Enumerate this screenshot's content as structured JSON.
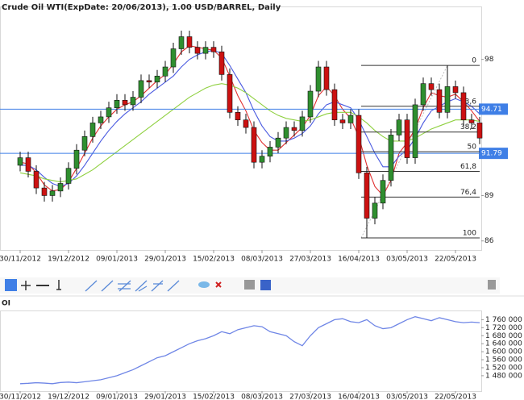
{
  "chart_data": {
    "type": "candlestick",
    "title": "Crude Oil WTI(ExpDate: 20/06/2013), 1.00 USD/BARREL, Daily",
    "xticks": [
      {
        "value": 0,
        "label": "30/11/2012"
      },
      {
        "value": 6,
        "label": "19/12/2012"
      },
      {
        "value": 12,
        "label": "09/01/2013"
      },
      {
        "value": 18,
        "label": "29/01/2013"
      },
      {
        "value": 24,
        "label": "15/02/2013"
      },
      {
        "value": 30,
        "label": "08/03/2013"
      },
      {
        "value": 36,
        "label": "27/03/2013"
      },
      {
        "value": 42,
        "label": "16/04/2013"
      },
      {
        "value": 48,
        "label": "03/05/2013"
      },
      {
        "value": 54,
        "label": "22/05/2013"
      }
    ],
    "ylim": [
      85.4,
      101.5
    ],
    "yticks": [
      86,
      89,
      98
    ],
    "open": [
      91.0,
      91.5,
      90.6,
      89.5,
      89.0,
      89.3,
      89.8,
      90.8,
      92.0,
      92.9,
      93.8,
      94.2,
      94.8,
      95.3,
      95.0,
      95.5,
      96.6,
      96.5,
      96.9,
      97.5,
      98.7,
      99.5,
      98.8,
      98.4,
      98.8,
      98.5,
      97.0,
      94.5,
      94.0,
      93.5,
      91.2,
      91.6,
      92.2,
      92.8,
      93.5,
      93.3,
      94.2,
      95.9,
      97.5,
      96.0,
      94.0,
      93.8,
      94.3,
      90.5,
      87.5,
      88.5,
      90.0,
      93.0,
      94.0,
      91.5,
      95.0,
      96.4,
      96.0,
      94.5,
      96.2,
      95.8,
      94.0,
      93.8
    ],
    "high": [
      91.9,
      91.9,
      91.0,
      89.9,
      89.7,
      90.2,
      91.2,
      92.4,
      93.3,
      94.2,
      94.6,
      95.2,
      95.7,
      95.7,
      95.9,
      97.0,
      97.0,
      97.3,
      97.9,
      99.1,
      99.9,
      99.9,
      99.2,
      99.2,
      99.2,
      98.9,
      97.4,
      94.9,
      94.4,
      93.9,
      92.0,
      92.6,
      93.2,
      93.9,
      93.9,
      94.6,
      96.3,
      97.9,
      97.9,
      96.4,
      94.4,
      94.7,
      94.7,
      90.9,
      88.9,
      90.4,
      93.4,
      94.4,
      94.4,
      95.4,
      96.8,
      96.8,
      96.4,
      97.6,
      96.6,
      96.2,
      94.4,
      94.2
    ],
    "low": [
      90.6,
      90.2,
      89.1,
      88.6,
      88.6,
      88.9,
      89.4,
      90.4,
      91.6,
      92.5,
      93.4,
      93.8,
      94.4,
      94.6,
      94.6,
      95.1,
      96.1,
      96.1,
      96.5,
      97.1,
      98.3,
      98.4,
      98.0,
      98.0,
      98.1,
      96.6,
      94.1,
      93.6,
      93.1,
      90.8,
      90.8,
      91.2,
      91.8,
      92.4,
      92.9,
      92.9,
      93.8,
      95.5,
      95.6,
      93.6,
      93.4,
      93.4,
      90.1,
      86.2,
      87.1,
      88.1,
      89.6,
      92.6,
      91.1,
      91.1,
      94.6,
      95.6,
      94.1,
      94.1,
      95.4,
      93.6,
      93.4,
      92.4
    ],
    "close": [
      91.5,
      90.6,
      89.5,
      89.0,
      89.3,
      89.8,
      90.8,
      92.0,
      92.9,
      93.8,
      94.2,
      94.8,
      95.3,
      95.0,
      95.5,
      96.6,
      96.5,
      96.9,
      97.5,
      98.7,
      99.5,
      98.8,
      98.4,
      98.8,
      98.5,
      97.0,
      94.5,
      94.0,
      93.5,
      91.2,
      91.6,
      92.2,
      92.8,
      93.5,
      93.3,
      94.2,
      95.9,
      97.5,
      96.0,
      94.0,
      93.8,
      94.3,
      90.5,
      87.5,
      88.5,
      90.0,
      93.0,
      94.0,
      91.5,
      95.0,
      96.4,
      96.0,
      94.5,
      96.2,
      95.8,
      94.0,
      93.8,
      92.8
    ],
    "up_color": "#2f8f2f",
    "down_color": "#cc1111",
    "series": [
      {
        "color": "#e03030",
        "values": [
          91.2,
          91.1,
          90.5,
          89.7,
          89.3,
          89.4,
          89.9,
          90.8,
          91.8,
          92.8,
          93.6,
          94.2,
          94.7,
          95.0,
          95.2,
          95.6,
          96.1,
          96.6,
          97.0,
          97.7,
          98.5,
          98.9,
          98.8,
          98.7,
          98.6,
          98.1,
          96.9,
          95.6,
          94.6,
          93.3,
          92.5,
          92.0,
          92.0,
          92.5,
          93.0,
          93.5,
          94.3,
          95.6,
          96.2,
          95.6,
          94.7,
          94.1,
          92.9,
          91.0,
          89.6,
          89.0,
          90.0,
          91.8,
          92.5,
          93.4,
          94.8,
          95.8,
          95.6,
          95.5,
          95.7,
          95.2,
          94.6,
          93.9
        ]
      },
      {
        "color": "#4a5ae0",
        "values": [
          91.0,
          91.0,
          90.7,
          90.2,
          89.8,
          89.6,
          89.8,
          90.3,
          91.0,
          91.8,
          92.6,
          93.3,
          93.9,
          94.4,
          94.8,
          95.2,
          95.7,
          96.1,
          96.5,
          96.9,
          97.5,
          98.0,
          98.3,
          98.5,
          98.6,
          98.4,
          97.6,
          96.7,
          95.8,
          94.6,
          93.6,
          92.9,
          92.6,
          92.6,
          92.8,
          93.1,
          93.6,
          94.4,
          95.0,
          95.2,
          95.0,
          94.8,
          94.0,
          92.9,
          91.8,
          90.9,
          90.9,
          91.6,
          92.0,
          92.8,
          93.8,
          94.6,
          94.9,
          95.2,
          95.4,
          95.2,
          94.9,
          94.4
        ]
      },
      {
        "color": "#8fd040",
        "values": [
          90.5,
          90.4,
          90.3,
          90.1,
          90.0,
          89.9,
          90.0,
          90.1,
          90.4,
          90.7,
          91.1,
          91.5,
          91.9,
          92.3,
          92.7,
          93.1,
          93.5,
          93.9,
          94.3,
          94.7,
          95.1,
          95.5,
          95.8,
          96.1,
          96.3,
          96.4,
          96.3,
          96.1,
          95.8,
          95.4,
          95.0,
          94.6,
          94.3,
          94.1,
          94.0,
          93.9,
          94.0,
          94.2,
          94.4,
          94.5,
          94.5,
          94.5,
          94.2,
          93.8,
          93.3,
          92.9,
          92.6,
          92.6,
          92.6,
          92.8,
          93.1,
          93.4,
          93.6,
          93.8,
          94.0,
          94.0,
          94.0,
          93.9
        ]
      }
    ],
    "hlines": [
      94.71,
      91.79
    ],
    "hline_color": "#3f7fe6",
    "fib_start": 42,
    "fib": [
      {
        "level": {
          "value": 0,
          "label": "0"
        },
        "price": 97.6
      },
      {
        "level": {
          "value": 23.6,
          "label": "23,6"
        },
        "price": 94.9
      },
      {
        "level": {
          "value": 38.2,
          "label": "38,2"
        },
        "price": 93.2
      },
      {
        "level": {
          "value": 50,
          "label": "50"
        },
        "price": 91.9
      },
      {
        "level": {
          "value": 61.8,
          "label": "61,8"
        },
        "price": 90.6
      },
      {
        "level": {
          "value": 76.4,
          "label": "76,4"
        },
        "price": 88.9
      },
      {
        "level": {
          "value": 100,
          "label": "100"
        },
        "price": 86.2
      }
    ],
    "oi": {
      "title": "OI",
      "color": "#6f86e6",
      "ylim": [
        1403000,
        1806000
      ],
      "yticks": [
        {
          "value": 1480000,
          "label": "1 480 000"
        },
        {
          "value": 1520000,
          "label": "1 520 000"
        },
        {
          "value": 1560000,
          "label": "1 560 000"
        },
        {
          "value": 1600000,
          "label": "1 600 000"
        },
        {
          "value": 1640000,
          "label": "1 640 000"
        },
        {
          "value": 1680000,
          "label": "1 680 000"
        },
        {
          "value": 1720000,
          "label": "1 720 000"
        },
        {
          "value": 1760000,
          "label": "1 760 000"
        }
      ],
      "values": [
        1440000,
        1442000,
        1445000,
        1443000,
        1440000,
        1446000,
        1448000,
        1445000,
        1450000,
        1455000,
        1460000,
        1470000,
        1480000,
        1495000,
        1510000,
        1530000,
        1550000,
        1570000,
        1580000,
        1600000,
        1620000,
        1640000,
        1655000,
        1665000,
        1680000,
        1700000,
        1690000,
        1710000,
        1720000,
        1730000,
        1725000,
        1700000,
        1690000,
        1680000,
        1650000,
        1630000,
        1680000,
        1720000,
        1740000,
        1760000,
        1765000,
        1750000,
        1745000,
        1760000,
        1730000,
        1715000,
        1720000,
        1740000,
        1760000,
        1775000,
        1765000,
        1755000,
        1770000,
        1760000,
        1750000,
        1745000,
        1748000,
        1745000
      ]
    }
  }
}
